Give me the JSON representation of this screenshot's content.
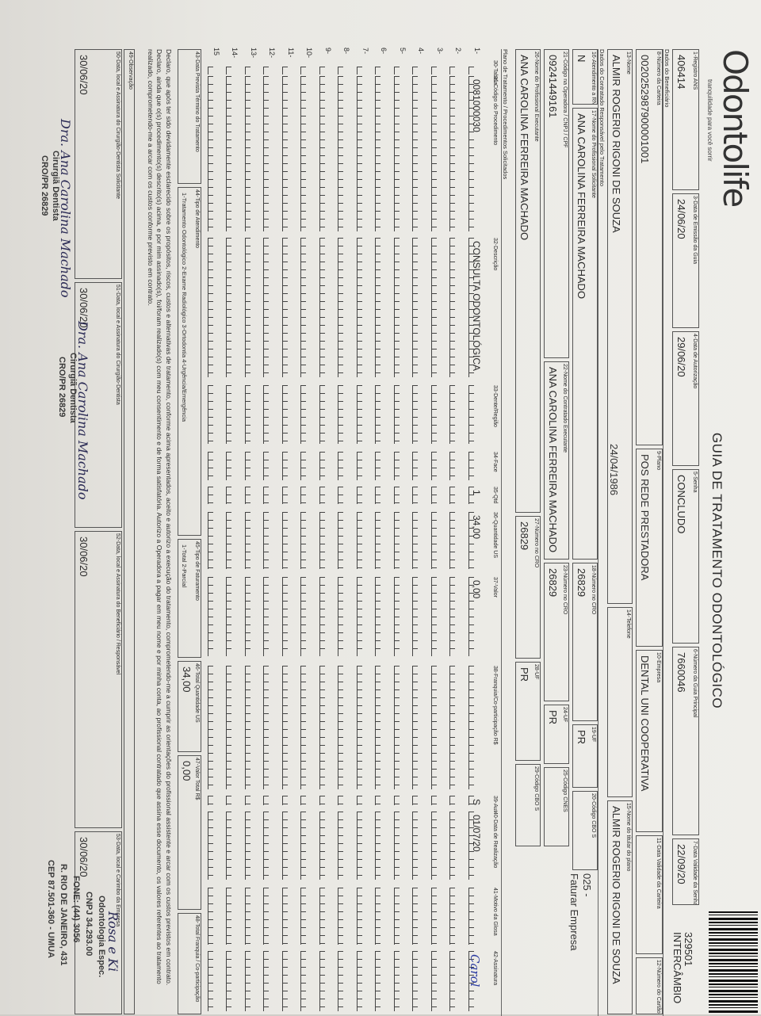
{
  "header": {
    "logo": "Odontolife",
    "tagline": "tranquilidade para você sorrir",
    "title": "GUIA DE TRATAMENTO ODONTOLÓGICO",
    "barcode_number": "329501",
    "guide_type": "INTERCÂMBIO"
  },
  "fields": [
    {
      "label": "1-Registro ANS",
      "value": "406414"
    },
    {
      "label": "3-Data de Emissão da Guia",
      "value": "24/06/20"
    },
    {
      "label": "4-Data de Autorização",
      "value": "29/06/20"
    },
    {
      "label": "5-Senha",
      "value": "CONCLUDO"
    },
    {
      "label": "6-Número da Guia Principal",
      "value": "7660046"
    },
    {
      "label": "7-Data Validade da Senha",
      "value": "22/09/20"
    },
    {
      "label": "8-Número da Carteira",
      "value": "0020252987900001001"
    },
    {
      "label": "9-Plano",
      "value": "POS REDE PRESTADORA"
    },
    {
      "label": "10-Empresa",
      "value": "DENTAL UNI COOPERATIVA"
    },
    {
      "label": "11-Data Validade da Carteira"
    },
    {
      "label": "12-Número do Cartão Nacional de Saúde"
    },
    {
      "label": "13-Nome",
      "value": "ALMIR ROGERIO RIGONI DE SOUZA"
    },
    {
      "label": "14-Telefone"
    },
    {
      "label": "15-Nome do titular do plano",
      "value": "ALMIR ROGERIO RIGONI DE SOUZA"
    },
    {
      "label": "16-Atendimento a RN",
      "value": "N"
    },
    {
      "label": "17-Nome do Profissional Solicitante",
      "value": "ANA CAROLINA FERREIRA MACHADO"
    },
    {
      "label": "18-Número no CRO",
      "value": "26829"
    },
    {
      "label": "19-UF",
      "value": "PR"
    },
    {
      "label": "20-Código CBO S"
    },
    {
      "label": "21-Código na Operadora / CNPJ / CPF",
      "value": "09241449161"
    },
    {
      "label": "22-Nome do Contratado Executante",
      "value": "ANA CAROLINA FERREIRA MACHADO"
    },
    {
      "label": "23-Número no CRO",
      "value": "26829"
    },
    {
      "label": "24-UF",
      "value": "PR"
    },
    {
      "label": "25-Código CNES"
    },
    {
      "label": "26-Nome do Profissional Executante",
      "value": "ANA CAROLINA FERREIRA MACHADO"
    },
    {
      "label": "27-Número no CRO",
      "value": "26829"
    },
    {
      "label": "28-UF",
      "value": "PR"
    },
    {
      "label": "29-Código CBO S"
    },
    {
      "label": "43-Data Prevista Término do Tratamento"
    },
    {
      "label": "44-Tipo de Atendimento",
      "value": "1-Tratamento Odontológico  2-Exame Radiológico  3-Ortodontia  4-Urgência/Emergência"
    },
    {
      "label": "45-Tipo de Faturamento",
      "value": "1-Total  2-Parcial"
    },
    {
      "label": "46-Total Quantidade US",
      "value": "34,00"
    },
    {
      "label": "47-Valor Total R$",
      "value": "0,00"
    },
    {
      "label": "48-Total Franquia / Co-participação"
    },
    {
      "label": "49-Observação"
    },
    {
      "label": "50-Data, local e Assinatura do Cirurgião-Dentista Solicitante",
      "value": "30/06/20"
    },
    {
      "label": "51-Data, local e Assinatura do Cirurgião-Dentista",
      "value": "30/06/20"
    },
    {
      "label": "52-Data, local e Assinatura do Beneficiário / Responsável",
      "value": "30/06/20"
    },
    {
      "label": "53-Data, local e Carimbo da Empresa",
      "value": "30/06/20"
    }
  ],
  "sections": [
    "Dados do Beneficiário",
    "Dados do Contratado Responsável pelo Tratamento",
    "Plano de Tratamento / Procedimentos Solicitados"
  ],
  "procedures": {
    "columns": [
      "30-Tabela",
      "31-Código do Procedimento",
      "32-Descrição",
      "33-Dente/Região",
      "34-Face",
      "35-Qtd",
      "36-Quantidade US",
      "37-Valor",
      "38-Franquia/Co-participação R$",
      "39-Aut",
      "40-Data de Realização",
      "41-Motivo da Glosa",
      "42-Assinatura"
    ],
    "rows": [
      [
        "1-",
        null,
        "0081000030",
        "CONSULTA ODONTOLÓGICA",
        null,
        null,
        "1",
        "34,00",
        "0,00",
        null,
        "S",
        "01/07/20",
        null,
        "Carol"
      ],
      [
        "2-"
      ],
      [
        "3-"
      ],
      [
        "4-"
      ],
      [
        "5-"
      ],
      [
        "6-"
      ],
      [
        "7-"
      ],
      [
        "8-"
      ],
      [
        "9-"
      ],
      [
        "10-"
      ],
      [
        "11-"
      ],
      [
        "12-"
      ],
      [
        "13-"
      ],
      [
        "14-"
      ],
      [
        "15"
      ]
    ]
  },
  "declaration": "Declaro, que após ter sido devidamente esclarecido sobre os propósitos, riscos, custos e alternativas de tratamento, conforme acima apresentados, aceito e autorizo a execução do tratamento, comprometendo-me a cumprir as orientações do profissional assistente e arcar com os custos previstos em contrato. Declaro, ainda que o(s) procedimento(s) descrito(s) acima, e por mim assinado(s), foi/foram realizado(s) com meu consentimento e de forma satisfatória. Autorizo a Operadora a pagar em meu nome e por minha conta, ao profissional contratado que assina esse documento, os valores referentes ao tratamento realizado, comprometendo-me a arcar com os custos conforme previsto em contrato.",
  "annotations": [
    "24/04/1986",
    "025 -",
    "Faturar Empresa",
    "Dra. Ana Carolina Machado",
    "Cirurgiã Dentista",
    "CRO/PR 26829",
    "Dra. Ana Carolina Machado",
    "Cirurgiã Dentista",
    "CRO/PR 26829",
    "Rosa e Ki",
    "Odontologia Espec.",
    "CNPJ 34.293.00",
    "FONE: (44) 3056",
    "R. RIO DE JANEIRO, 431",
    "CEP 87.501-360 - UMUA"
  ]
}
